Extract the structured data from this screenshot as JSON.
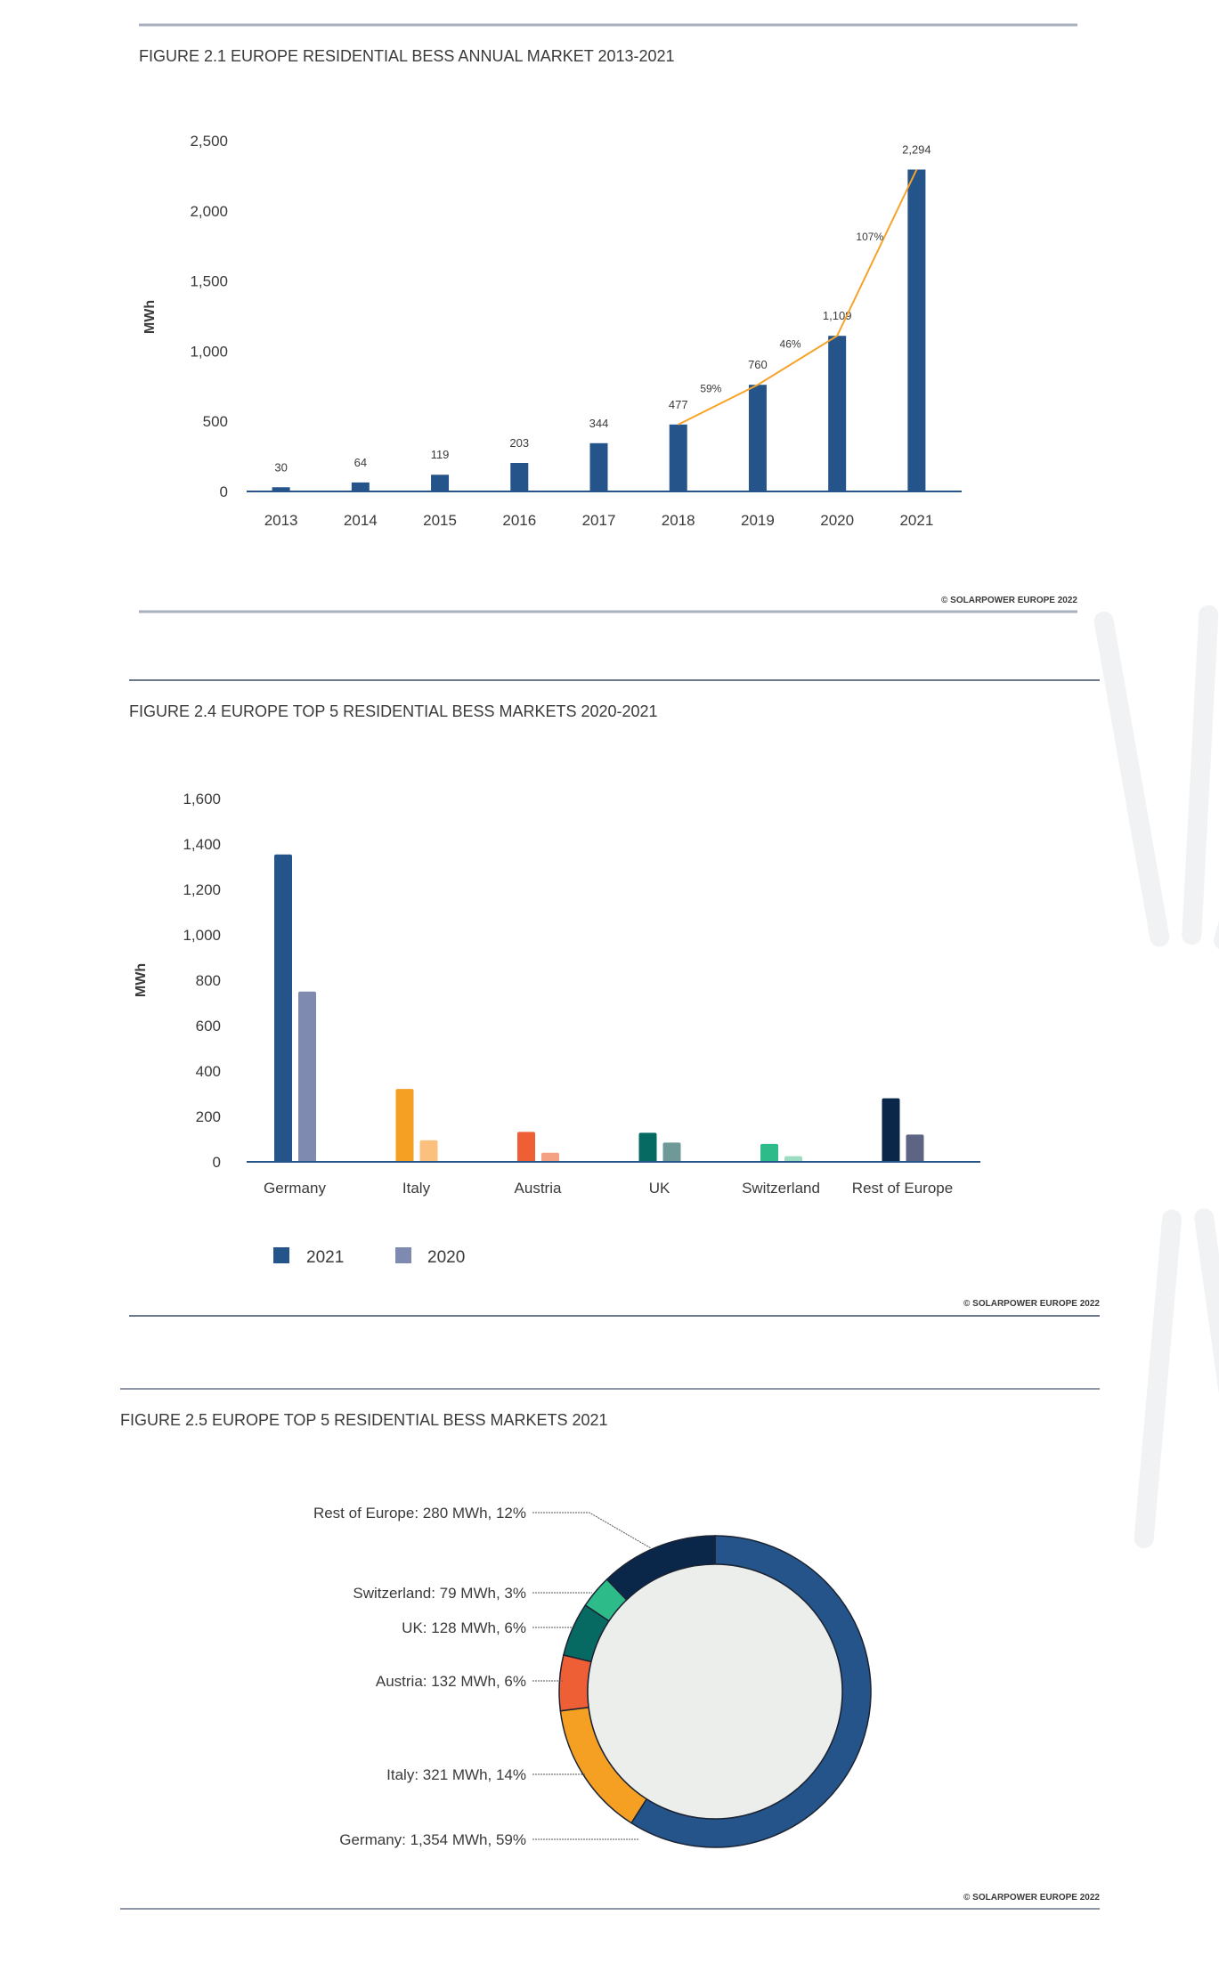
{
  "chart_data": [
    {
      "type": "bar",
      "title": "FIGURE 2.1 EUROPE RESIDENTIAL BESS ANNUAL MARKET 2013-2021",
      "ylabel": "MWh",
      "ylim": [
        0,
        2500
      ],
      "yticks": [
        "0",
        "500",
        "1,000",
        "1,500",
        "2,000",
        "2,500"
      ],
      "yticks_values": [
        0,
        500,
        1000,
        1500,
        2000,
        2500
      ],
      "categories": [
        "2013",
        "2014",
        "2015",
        "2016",
        "2017",
        "2018",
        "2019",
        "2020",
        "2021"
      ],
      "values": [
        30,
        64,
        119,
        203,
        344,
        477,
        760,
        1109,
        2294
      ],
      "value_labels": [
        "30",
        "64",
        "119",
        "203",
        "344",
        "477",
        "760",
        "1,109",
        "2,294"
      ],
      "growth_line": {
        "from_category": "2018",
        "labels": [
          "59%",
          "46%",
          "107%"
        ],
        "color": "#f5a32a"
      },
      "bar_color": "#24548a",
      "grid": false,
      "source": "© SOLARPOWER EUROPE 2022"
    },
    {
      "type": "bar",
      "title": "FIGURE 2.4 EUROPE TOP 5 RESIDENTIAL BESS MARKETS 2020-2021",
      "ylabel": "MWh",
      "ylim": [
        0,
        1600
      ],
      "yticks": [
        "0",
        "200",
        "400",
        "600",
        "800",
        "1,000",
        "1,200",
        "1,400",
        "1,600"
      ],
      "yticks_values": [
        0,
        200,
        400,
        600,
        800,
        1000,
        1200,
        1400,
        1600
      ],
      "categories": [
        "Germany",
        "Italy",
        "Austria",
        "UK",
        "Switzerland",
        "Rest of Europe"
      ],
      "series": [
        {
          "name": "2021",
          "values": [
            1354,
            321,
            132,
            128,
            79,
            280
          ],
          "colors": [
            "#24548a",
            "#f59f23",
            "#ee5f35",
            "#066a63",
            "#2dbb8a",
            "#0a2649"
          ]
        },
        {
          "name": "2020",
          "values": [
            750,
            95,
            40,
            85,
            25,
            120
          ],
          "colors": [
            "#7f8ab0",
            "#fcc07e",
            "#f4a183",
            "#6e9996",
            "#9cdcc0",
            "#5e6483"
          ]
        }
      ],
      "legend": {
        "placement": "bottom-left",
        "items": [
          {
            "label": "2021",
            "color": "#24548a"
          },
          {
            "label": "2020",
            "color": "#7f8ab0"
          }
        ]
      },
      "grid": false,
      "source": "© SOLARPOWER EUROPE 2022"
    },
    {
      "type": "pie",
      "style": "donut",
      "title": "FIGURE 2.5 EUROPE TOP 5 RESIDENTIAL BESS MARKETS 2021",
      "slices": [
        {
          "name": "Germany",
          "value": 1354,
          "percent": 59,
          "label": "Germany: 1,354 MWh, 59%",
          "color": "#24548a"
        },
        {
          "name": "Italy",
          "value": 321,
          "percent": 14,
          "label": "Italy: 321 MWh, 14%",
          "color": "#f59f23"
        },
        {
          "name": "Austria",
          "value": 132,
          "percent": 6,
          "label": "Austria: 132 MWh, 6%",
          "color": "#ee5f35"
        },
        {
          "name": "UK",
          "value": 128,
          "percent": 6,
          "label": "UK: 128 MWh, 6%",
          "color": "#066a63"
        },
        {
          "name": "Switzerland",
          "value": 79,
          "percent": 3,
          "label": "Switzerland: 79 MWh, 3%",
          "color": "#2dbb8a"
        },
        {
          "name": "Rest of Europe",
          "value": 280,
          "percent": 12,
          "label": "Rest of Europe: 280 MWh, 12%",
          "color": "#0a2649"
        }
      ],
      "source": "© SOLARPOWER EUROPE 2022"
    }
  ]
}
